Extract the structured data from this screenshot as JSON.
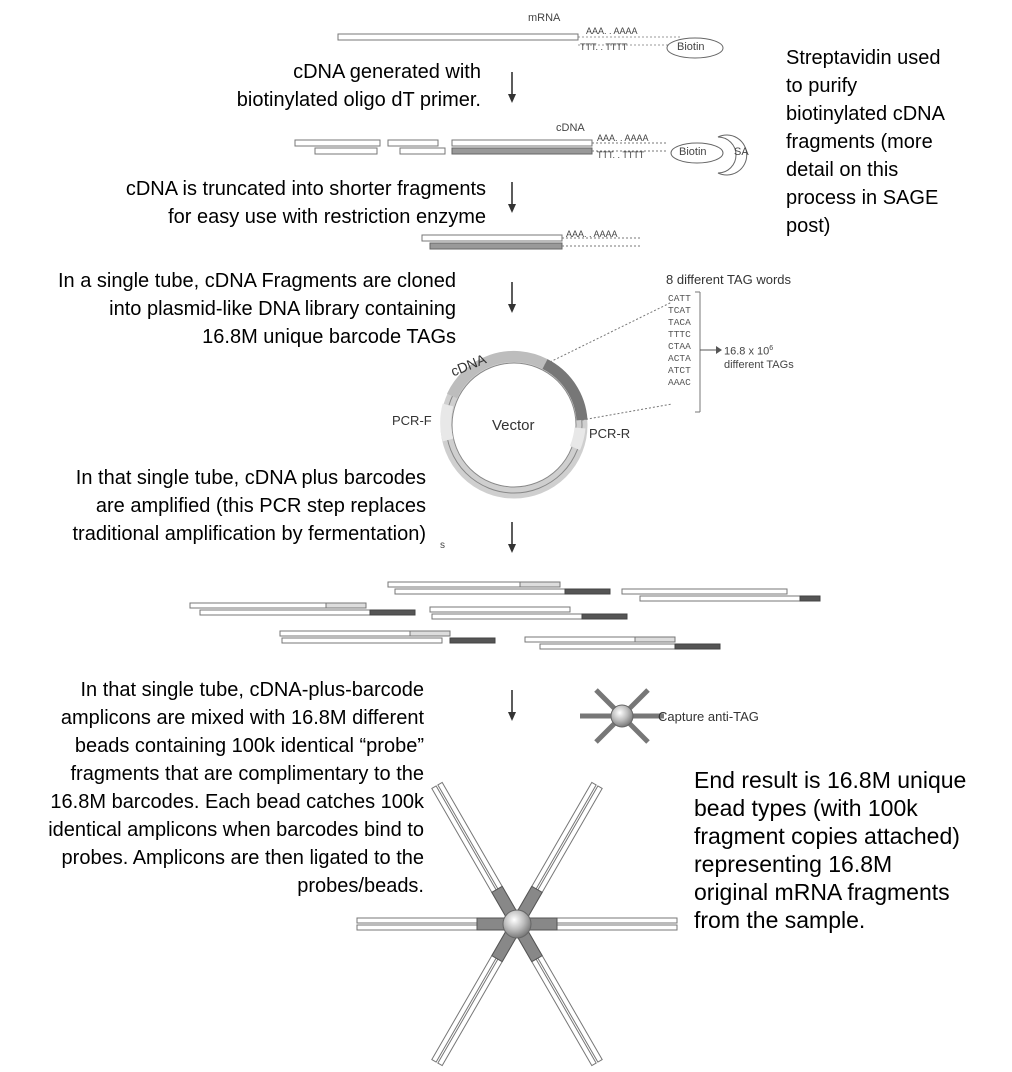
{
  "labels": {
    "mrna": "mRNA",
    "cdna_top": "cDNA",
    "cdna_circle": "cDNA",
    "polyA": "AAA. . AAAA",
    "polyT": "TTT. . TTTT",
    "biotin": "Biotin",
    "sa": "SA",
    "tag_words_title": "8 different TAG words",
    "tag_words": [
      "CATT",
      "TCAT",
      "TACA",
      "TTTC",
      "CTAA",
      "ACTA",
      "ATCT",
      "AAAC"
    ],
    "tag_count_line1": "16.8 x 10",
    "tag_count_exp": "6",
    "tag_count_line2": "different TAGs",
    "pcr_f": "PCR-F",
    "pcr_r": "PCR-R",
    "vector": "Vector",
    "capture": "Capture anti-TAG",
    "stray_mark": "s"
  },
  "notes": {
    "step1_a": "cDNA generated with",
    "step1_b": "biotinylated oligo dT primer.",
    "strep_1": "Streptavidin used",
    "strep_2": "to purify",
    "strep_3": "biotinylated cDNA",
    "strep_4": "fragments (more",
    "strep_5": "detail on this",
    "strep_6": "process in SAGE",
    "strep_7": "post)",
    "step2_a": "cDNA is truncated into shorter fragments",
    "step2_b": "for easy use with restriction enzyme",
    "step3_a": "In a single tube, cDNA Fragments are cloned",
    "step3_b": "into plasmid-like DNA library containing",
    "step3_c": "16.8M unique barcode TAGs",
    "step4_a": "In that single tube, cDNA plus barcodes",
    "step4_b": "are amplified (this PCR step replaces",
    "step4_c": "traditional amplification by fermentation)",
    "step5_a": "In that single tube, cDNA-plus-barcode",
    "step5_b": "amplicons are mixed with 16.8M different",
    "step5_c": "beads containing 100k identical “probe”",
    "step5_d": "fragments that are complimentary to the",
    "step5_e": "16.8M barcodes. Each bead catches 100k",
    "step5_f": "identical amplicons when barcodes bind to",
    "step5_g": "probes. Amplicons are then ligated to the",
    "step5_h": "probes/beads.",
    "end_1": "End result is 16.8M unique",
    "end_2": "bead types (with 100k",
    "end_3": "fragment copies attached)",
    "end_4": "representing 16.8M",
    "end_5": "original mRNA fragments",
    "end_6": "from the sample."
  }
}
